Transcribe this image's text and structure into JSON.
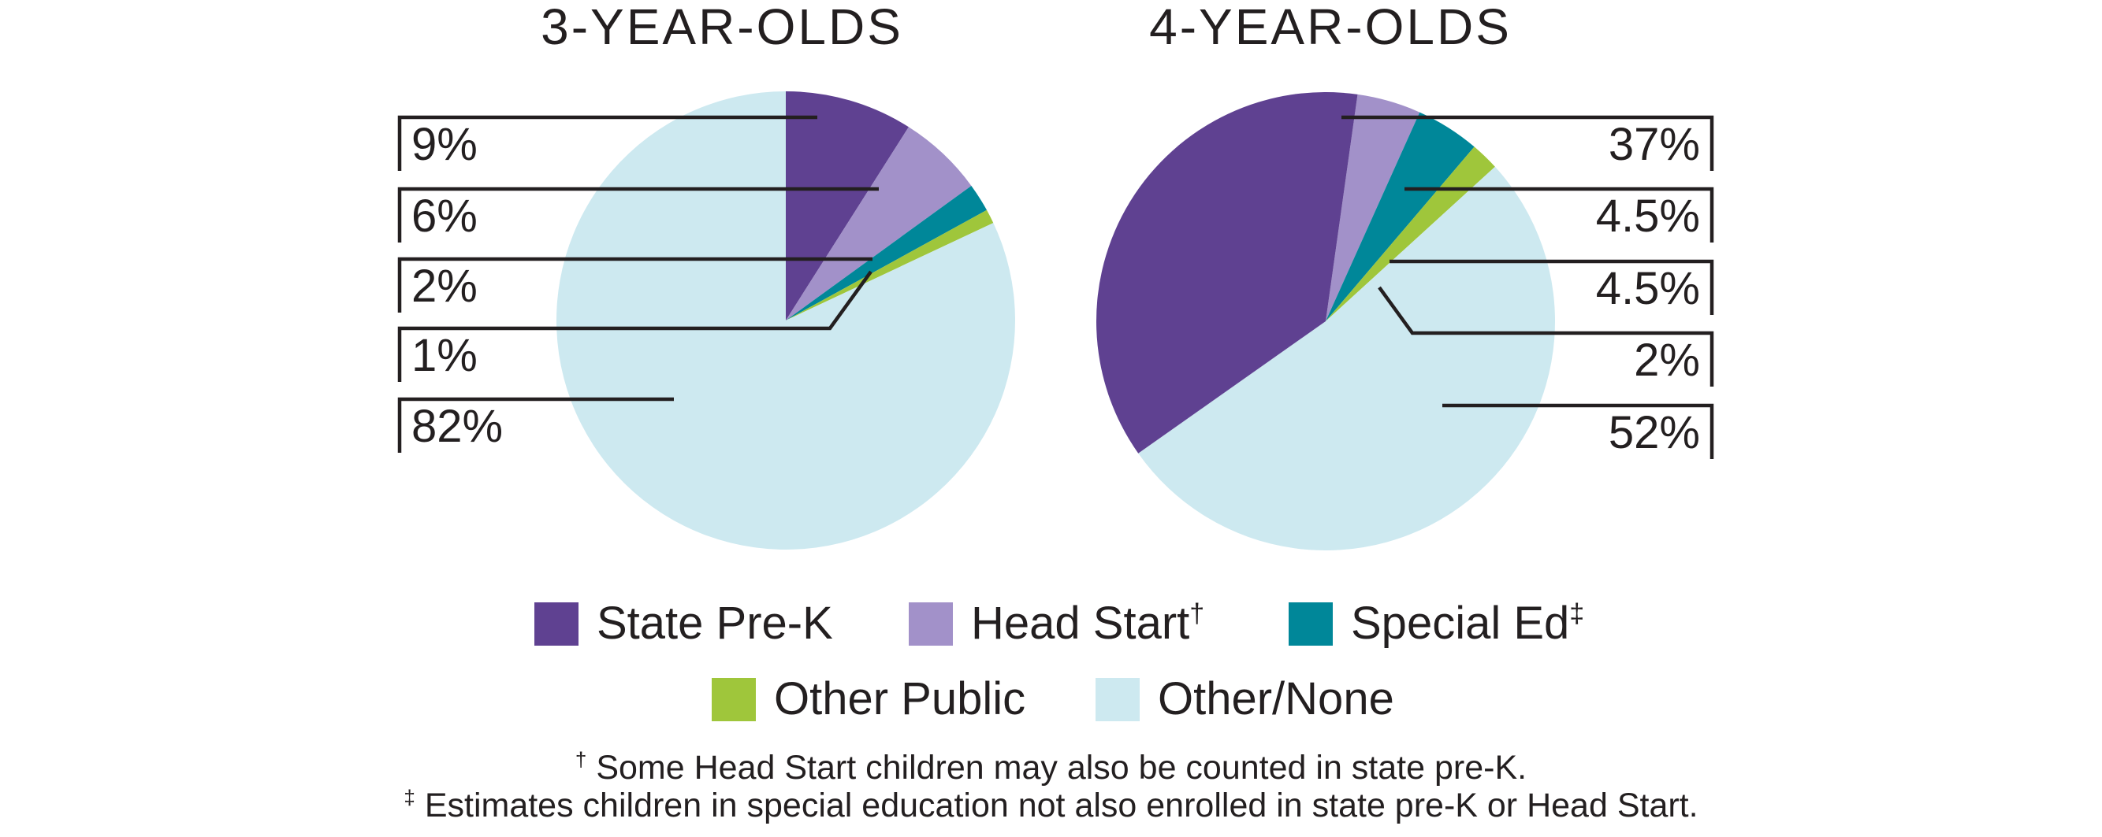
{
  "colors": {
    "state_prek": "#5f4191",
    "head_start": "#a291c9",
    "special_ed": "#008799",
    "other_public": "#9fc63b",
    "other_none": "#cde9f0",
    "ink": "#231f20"
  },
  "chart_data": [
    {
      "type": "pie",
      "title": "3-YEAR-OLDS",
      "unit": "percent",
      "series": [
        {
          "label": "State Pre-K",
          "value": 9,
          "display": "9%",
          "color": "state_prek"
        },
        {
          "label": "Head Start",
          "value": 6,
          "display": "6%",
          "color": "head_start"
        },
        {
          "label": "Special Ed",
          "value": 2,
          "display": "2%",
          "color": "special_ed"
        },
        {
          "label": "Other Public",
          "value": 1,
          "display": "1%",
          "color": "other_public"
        },
        {
          "label": "Other/None",
          "value": 82,
          "display": "82%",
          "color": "other_none"
        }
      ],
      "draw_order": [
        0,
        1,
        2,
        3,
        4
      ],
      "rotation_deg": 0,
      "callout_side": "left"
    },
    {
      "type": "pie",
      "title": "4-YEAR-OLDS",
      "unit": "percent",
      "series": [
        {
          "label": "State Pre-K",
          "value": 37,
          "display": "37%",
          "color": "state_prek"
        },
        {
          "label": "Head Start",
          "value": 4.5,
          "display": "4.5%",
          "color": "head_start"
        },
        {
          "label": "Special Ed",
          "value": 4.5,
          "display": "4.5%",
          "color": "special_ed"
        },
        {
          "label": "Other Public",
          "value": 2,
          "display": "2%",
          "color": "other_public"
        },
        {
          "label": "Other/None",
          "value": 52,
          "display": "52%",
          "color": "other_none"
        }
      ],
      "draw_order": [
        1,
        2,
        3,
        4,
        0
      ],
      "rotation_deg": 8,
      "callout_side": "right"
    }
  ],
  "legend": {
    "items": [
      {
        "label": "State Pre-K",
        "sup": "",
        "color": "state_prek"
      },
      {
        "label": "Head Start",
        "sup": "†",
        "color": "head_start"
      },
      {
        "label": "Special Ed",
        "sup": "‡",
        "color": "special_ed"
      },
      {
        "label": "Other Public",
        "sup": "",
        "color": "other_public"
      },
      {
        "label": "Other/None",
        "sup": "",
        "color": "other_none"
      }
    ]
  },
  "footnotes": [
    {
      "sup": "†",
      "text": " Some Head Start children may also be counted in state pre-K."
    },
    {
      "sup": "‡",
      "text": " Estimates children in special education not also enrolled in state pre-K or Head Start."
    }
  ]
}
